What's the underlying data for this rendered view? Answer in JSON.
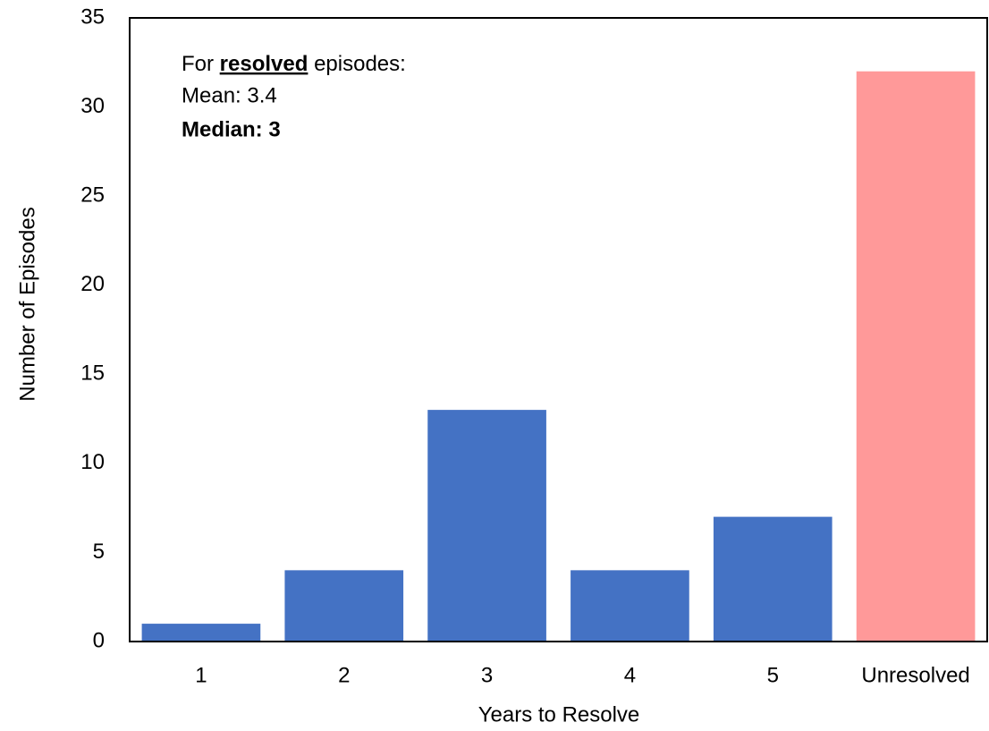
{
  "chart_data": {
    "type": "bar",
    "categories": [
      "1",
      "2",
      "3",
      "4",
      "5",
      "Unresolved"
    ],
    "values": [
      1,
      4,
      13,
      4,
      7,
      32
    ],
    "colors": [
      "#4472c4",
      "#4472c4",
      "#4472c4",
      "#4472c4",
      "#4472c4",
      "#ff9999"
    ],
    "x_label": "Years to Resolve",
    "y_label": "Number of Episodes",
    "ylim": [
      0,
      35
    ],
    "yticks": [
      0,
      5,
      10,
      15,
      20,
      25,
      30,
      35
    ],
    "grid": false,
    "annotation": {
      "line1": [
        "For",
        "resolved",
        "episodes:"
      ],
      "mean": "Mean: 3.4",
      "median": "Median: 3"
    }
  }
}
